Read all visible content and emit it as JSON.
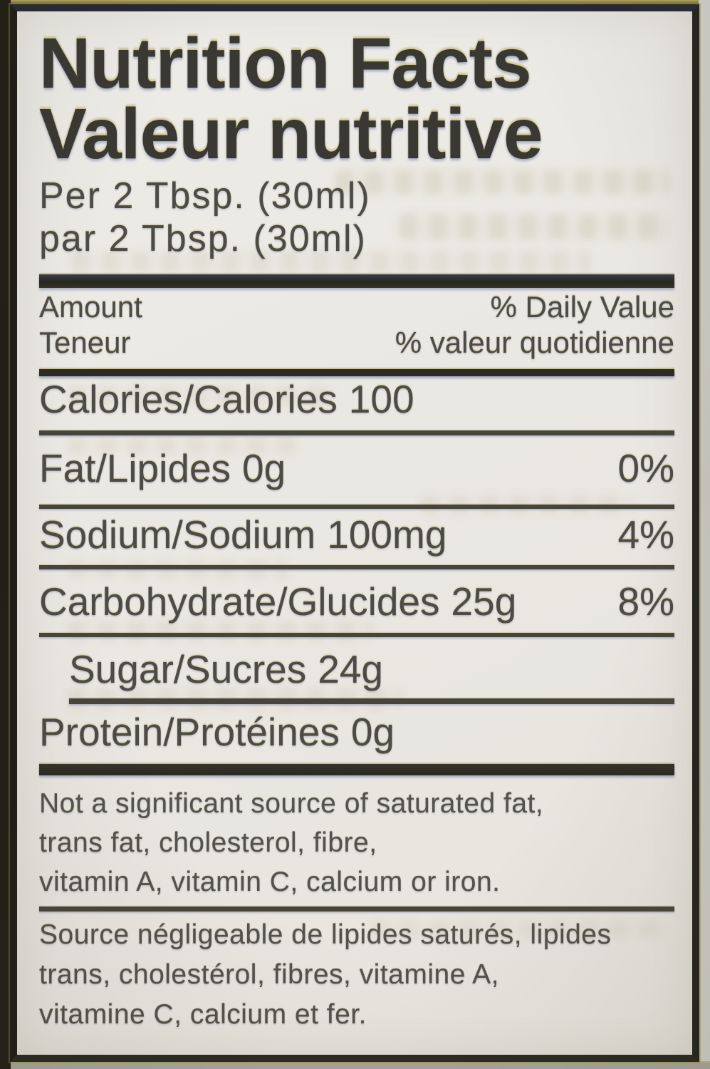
{
  "panel": {
    "title": {
      "en": "Nutrition Facts",
      "fr": "Valeur nutritive"
    },
    "serving": {
      "en": "Per 2 Tbsp. (30ml)",
      "fr": "par 2 Tbsp. (30ml)"
    },
    "header": {
      "amount_en": "Amount",
      "amount_fr": "Teneur",
      "daily_value_en": "% Daily Value",
      "daily_value_fr": "% valeur quotidienne"
    },
    "calories": {
      "label": "Calories/Calories",
      "value": "100"
    },
    "nutrients": [
      {
        "label": "Fat/Lipides",
        "amount": "0g",
        "daily_value": "0%"
      },
      {
        "label": "Sodium/Sodium",
        "amount": "100mg",
        "daily_value": "4%"
      },
      {
        "label": "Carbohydrate/Glucides",
        "amount": "25g",
        "daily_value": "8%"
      },
      {
        "label": "Sugar/Sucres",
        "amount": "24g",
        "daily_value": ""
      },
      {
        "label": "Protein/Protéines",
        "amount": "0g",
        "daily_value": ""
      }
    ],
    "footnotes": {
      "en": [
        "Not a significant source of saturated fat,",
        "trans fat, cholesterol, fibre,",
        "vitamin A, vitamin C, calcium or iron."
      ],
      "fr": [
        "Source négligeable de lipides saturés, lipides",
        "trans, cholestérol, fibres, vitamine A,",
        "vitamine C, calcium et fer."
      ]
    },
    "colors": {
      "panel_background": "#eae8e2",
      "ink": "#4c4b45",
      "title_ink": "#393833",
      "rule": "#43423a"
    }
  }
}
